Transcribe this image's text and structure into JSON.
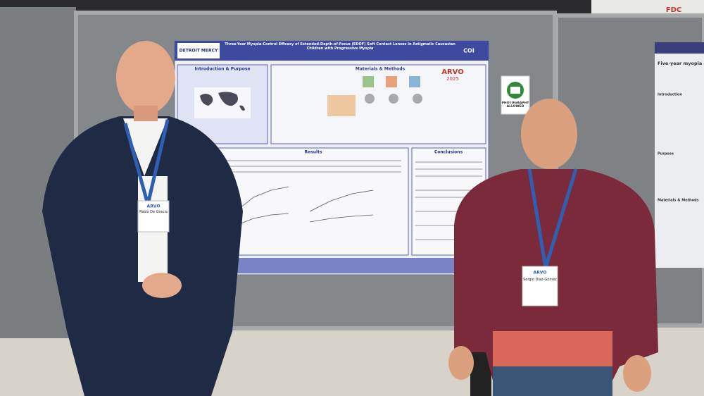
{
  "scene": {
    "background_sign": "FDC",
    "poster": {
      "institution": "DETROIT MERCY",
      "title": "Three-Year Myopia-Control Efficacy of Extended-Depth-of-Focus (EDOF) Soft Contact Lenses in Astigmatic Caucasian Children with Progressive Myopia",
      "logo_right": "COI",
      "sections": [
        "Introduction & Purpose",
        "Materials & Methods",
        "Results",
        "Conclusions"
      ],
      "event_logo": "ARVO",
      "event_year": "2025"
    },
    "photo_sign": "PHOTOGRAPHY ALLOWED",
    "right_poster": {
      "title": "Five-year myopia c",
      "sections": [
        "Introduction",
        "Purpose",
        "Materials & Methods"
      ]
    },
    "badges": [
      {
        "event": "ARVO",
        "name": "Pablo De Gracia"
      },
      {
        "event": "ARVO",
        "name": "Sergio Díaz-Gómez"
      }
    ]
  }
}
